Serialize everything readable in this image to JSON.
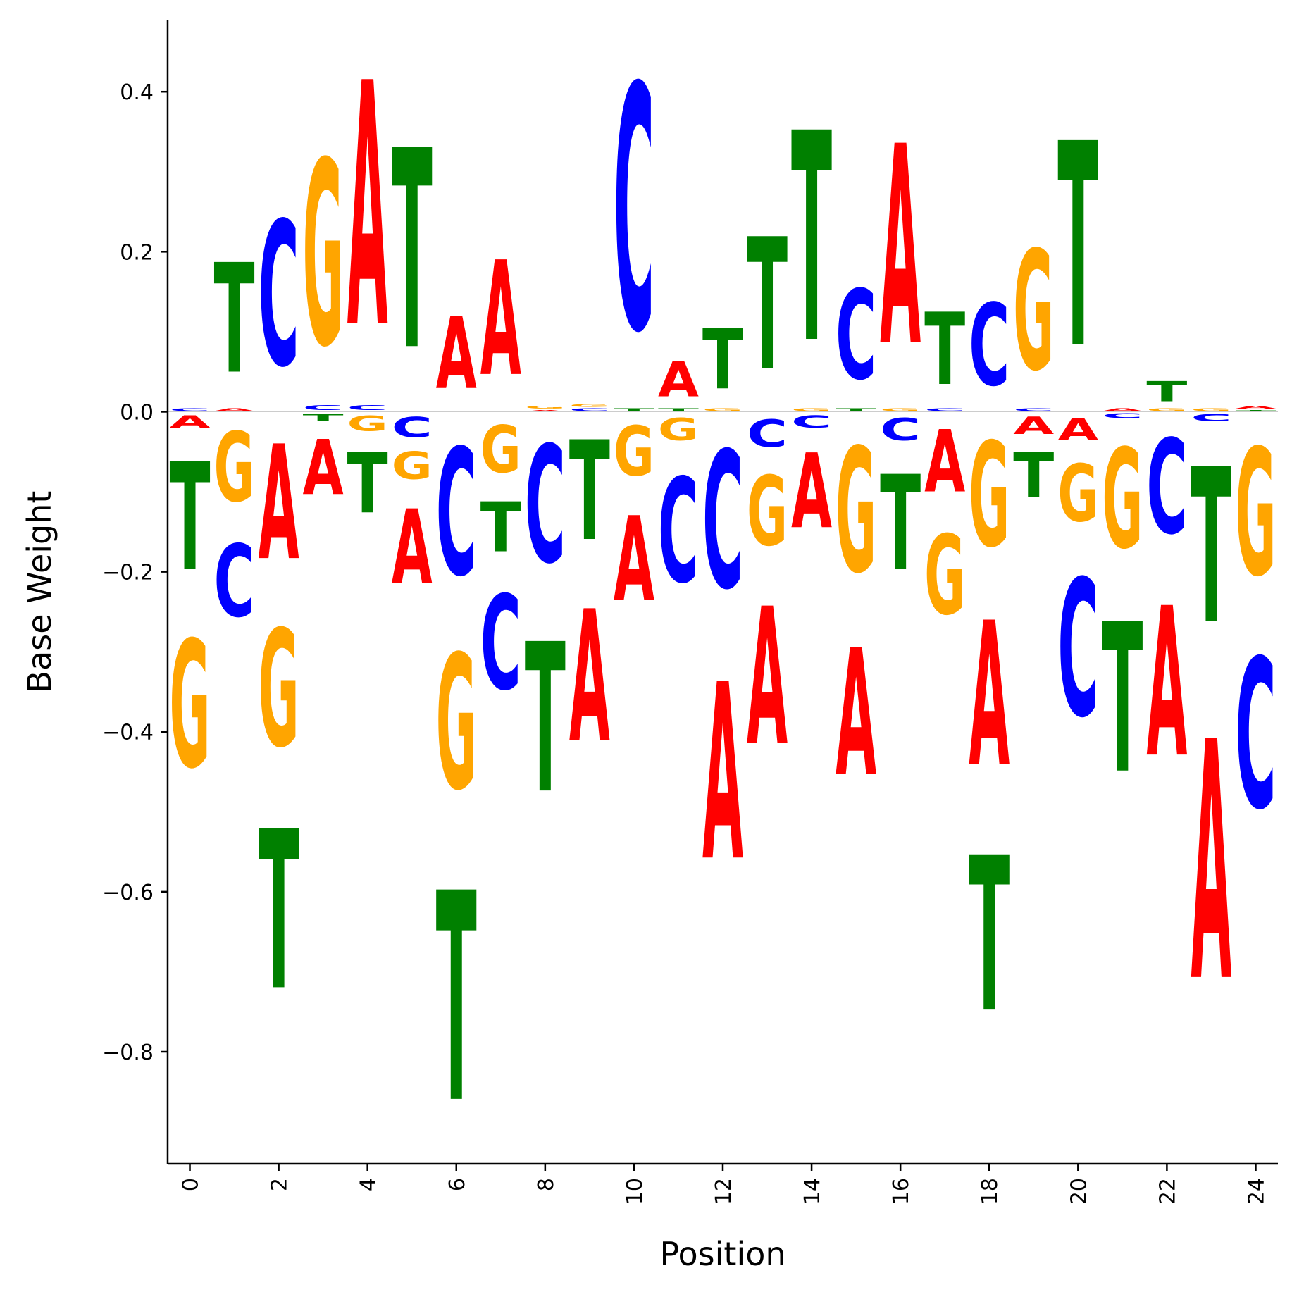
{
  "chart_data": {
    "type": "sequence-logo",
    "xlabel": "Position",
    "ylabel": "Base Weight",
    "xlim": [
      -0.5,
      24.5
    ],
    "ylim": [
      -0.94,
      0.49
    ],
    "xticks": [
      "0",
      "2",
      "4",
      "6",
      "8",
      "10",
      "12",
      "14",
      "16",
      "18",
      "20",
      "22",
      "24"
    ],
    "xtick_values": [
      0,
      2,
      4,
      6,
      8,
      10,
      12,
      14,
      16,
      18,
      20,
      22,
      24
    ],
    "yticks": [
      "0.4",
      "0.2",
      "0.0",
      "−0.2",
      "−0.4",
      "−0.6",
      "−0.8"
    ],
    "ytick_values": [
      0.4,
      0.2,
      0.0,
      -0.2,
      -0.4,
      -0.6,
      -0.8
    ],
    "colors": {
      "A": "#ff0000",
      "C": "#0000ff",
      "G": "#ffa500",
      "T": "#008000"
    },
    "positions": [
      {
        "pos": 0,
        "weights": {
          "A": -0.025,
          "C": 0.005,
          "G": -0.255,
          "T": -0.215
        }
      },
      {
        "pos": 1,
        "weights": {
          "A": 0.005,
          "C": -0.145,
          "G": -0.14,
          "T": 0.22
        }
      },
      {
        "pos": 2,
        "weights": {
          "A": -0.23,
          "C": 0.29,
          "G": -0.235,
          "T": -0.32
        }
      },
      {
        "pos": 3,
        "weights": {
          "A": -0.11,
          "C": 0.01,
          "G": 0.37,
          "T": -0.015
        }
      },
      {
        "pos": 4,
        "weights": {
          "A": 0.49,
          "C": 0.01,
          "G": -0.03,
          "T": -0.12
        }
      },
      {
        "pos": 5,
        "weights": {
          "A": -0.15,
          "C": -0.04,
          "G": -0.055,
          "T": 0.4
        }
      },
      {
        "pos": 6,
        "weights": {
          "A": 0.145,
          "C": -0.255,
          "G": -0.27,
          "T": -0.42
        }
      },
      {
        "pos": 7,
        "weights": {
          "A": 0.23,
          "C": -0.19,
          "G": -0.095,
          "T": -0.1
        }
      },
      {
        "pos": 8,
        "weights": {
          "A": 0.003,
          "C": -0.235,
          "G": 0.005,
          "T": -0.3
        }
      },
      {
        "pos": 9,
        "weights": {
          "A": -0.265,
          "C": 0.005,
          "G": 0.005,
          "T": -0.2
        }
      },
      {
        "pos": 10,
        "weights": {
          "A": -0.17,
          "C": 0.49,
          "G": -0.1,
          "T": 0.005
        }
      },
      {
        "pos": 11,
        "weights": {
          "A": 0.07,
          "C": -0.21,
          "G": -0.045,
          "T": 0.005
        }
      },
      {
        "pos": 12,
        "weights": {
          "A": -0.355,
          "C": -0.275,
          "G": 0.005,
          "T": 0.12
        }
      },
      {
        "pos": 13,
        "weights": {
          "A": -0.275,
          "C": -0.055,
          "G": -0.14,
          "T": 0.265
        }
      },
      {
        "pos": 14,
        "weights": {
          "A": -0.15,
          "C": -0.025,
          "G": 0.005,
          "T": 0.42
        }
      },
      {
        "pos": 15,
        "weights": {
          "A": -0.255,
          "C": 0.18,
          "G": -0.25,
          "T": 0.005
        }
      },
      {
        "pos": 16,
        "weights": {
          "A": 0.4,
          "C": -0.045,
          "G": 0.005,
          "T": -0.19
        }
      },
      {
        "pos": 17,
        "weights": {
          "A": -0.125,
          "C": 0.005,
          "G": -0.16,
          "T": 0.145
        }
      },
      {
        "pos": 18,
        "weights": {
          "A": -0.29,
          "C": 0.165,
          "G": -0.21,
          "T": -0.31
        }
      },
      {
        "pos": 19,
        "weights": {
          "A": -0.035,
          "C": 0.005,
          "G": 0.24,
          "T": -0.09
        }
      },
      {
        "pos": 20,
        "weights": {
          "A": -0.045,
          "C": -0.275,
          "G": -0.115,
          "T": 0.41
        }
      },
      {
        "pos": 21,
        "weights": {
          "A": 0.005,
          "C": -0.01,
          "G": -0.2,
          "T": -0.3
        }
      },
      {
        "pos": 22,
        "weights": {
          "A": -0.3,
          "C": -0.19,
          "G": 0.005,
          "T": 0.04
        }
      },
      {
        "pos": 23,
        "weights": {
          "A": -0.48,
          "C": -0.015,
          "G": 0.005,
          "T": -0.31
        }
      },
      {
        "pos": 24,
        "weights": {
          "A": 0.005,
          "C": -0.3,
          "G": -0.255,
          "T": 0.003
        }
      }
    ]
  }
}
